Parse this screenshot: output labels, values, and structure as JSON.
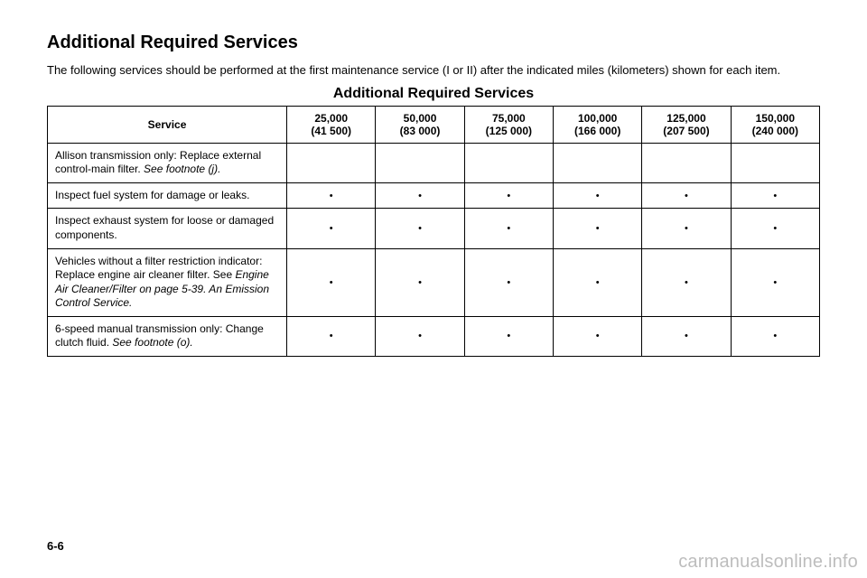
{
  "heading": "Additional Required Services",
  "intro": "The following services should be performed at the first maintenance service (I or II) after the indicated miles (kilometers) shown for each item.",
  "table_title": "Additional Required Services",
  "page_number": "6-6",
  "watermark": "carmanualsonline.info",
  "colors": {
    "text": "#000000",
    "background": "#ffffff",
    "border": "#000000",
    "watermark": "#bdbdbd"
  },
  "header": {
    "service": "Service",
    "cols": [
      {
        "top": "25,000",
        "bottom": "(41 500)"
      },
      {
        "top": "50,000",
        "bottom": "(83 000)"
      },
      {
        "top": "75,000",
        "bottom": "(125 000)"
      },
      {
        "top": "100,000",
        "bottom": "(166 000)"
      },
      {
        "top": "125,000",
        "bottom": "(207 500)"
      },
      {
        "top": "150,000",
        "bottom": "(240 000)"
      }
    ]
  },
  "rows": [
    {
      "parts": [
        {
          "t": "Allison transmission only: Replace external control-main filter. ",
          "i": false
        },
        {
          "t": "See footnote (j).",
          "i": true
        }
      ],
      "marks": [
        "",
        "",
        "",
        "",
        "",
        ""
      ]
    },
    {
      "parts": [
        {
          "t": "Inspect fuel system for damage or leaks.",
          "i": false
        }
      ],
      "marks": [
        "•",
        "•",
        "•",
        "•",
        "•",
        "•"
      ]
    },
    {
      "parts": [
        {
          "t": "Inspect exhaust system for loose or damaged components.",
          "i": false
        }
      ],
      "marks": [
        "•",
        "•",
        "•",
        "•",
        "•",
        "•"
      ]
    },
    {
      "parts": [
        {
          "t": "Vehicles without a filter restriction indicator: Replace engine air cleaner filter. See ",
          "i": false
        },
        {
          "t": "Engine Air Cleaner/Filter on page 5-39. An Emission Control Service.",
          "i": true
        }
      ],
      "marks": [
        "•",
        "•",
        "•",
        "•",
        "•",
        "•"
      ]
    },
    {
      "parts": [
        {
          "t": "6-speed manual transmission only: Change clutch fluid. ",
          "i": false
        },
        {
          "t": "See footnote (o).",
          "i": true
        }
      ],
      "marks": [
        "•",
        "•",
        "•",
        "•",
        "•",
        "•"
      ]
    }
  ]
}
